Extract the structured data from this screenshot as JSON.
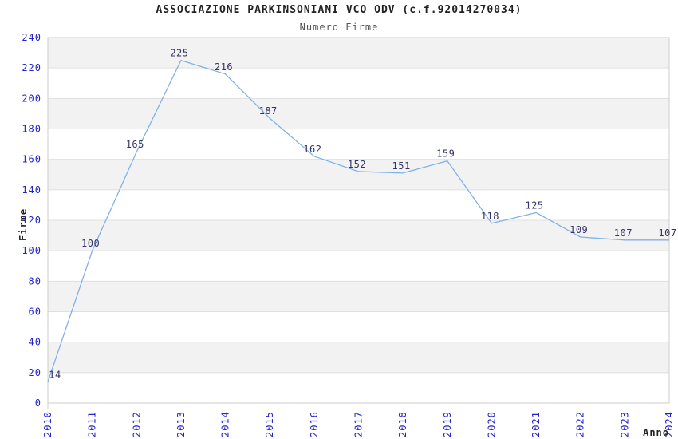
{
  "chart_data": {
    "type": "line",
    "title": "ASSOCIAZIONE PARKINSONIANI VCO ODV (c.f.92014270034)",
    "subtitle": "Numero Firme",
    "xlabel": "Anno",
    "ylabel": "Firme",
    "x": [
      2010,
      2011,
      2012,
      2013,
      2014,
      2015,
      2016,
      2017,
      2018,
      2019,
      2020,
      2021,
      2022,
      2023,
      2024
    ],
    "values": [
      14,
      100,
      165,
      225,
      216,
      187,
      162,
      152,
      151,
      159,
      118,
      125,
      109,
      107,
      107
    ],
    "ylim": [
      0,
      240
    ],
    "ytick_step": 20,
    "grid": "horizontal alternating bands with gridlines every 20",
    "legend": "none",
    "markers": "none",
    "colors": {
      "line": "#7fb2e8",
      "tick_labels": "#2222cc",
      "data_labels": "#333366",
      "band": "#f2f2f2",
      "grid_line": "#e0e0e0",
      "border": "#cccccc",
      "title": "#222222",
      "subtitle": "#555555",
      "background": "#ffffff"
    }
  }
}
